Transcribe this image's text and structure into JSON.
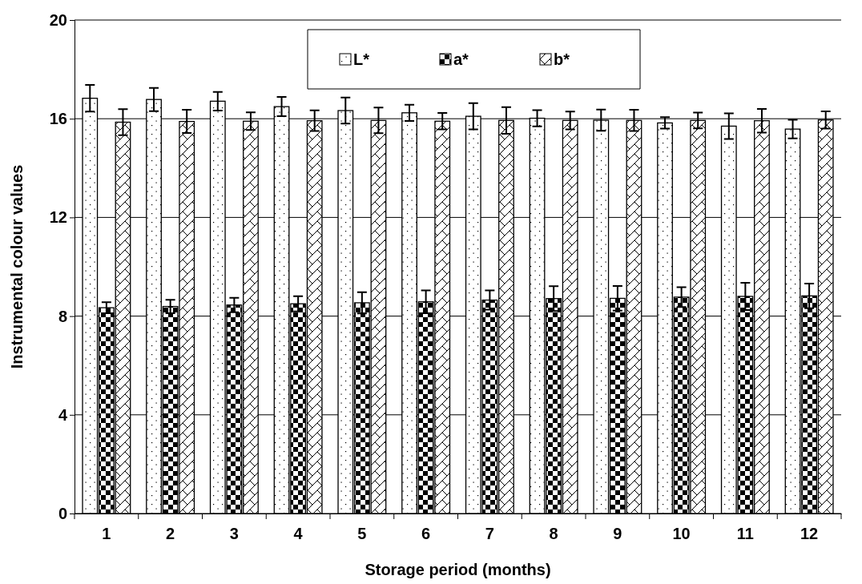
{
  "chart_data": {
    "type": "bar",
    "xlabel": "Storage period (months)",
    "ylabel": "Instrumental colour values",
    "categories": [
      "1",
      "2",
      "3",
      "4",
      "5",
      "6",
      "7",
      "8",
      "9",
      "10",
      "11",
      "12"
    ],
    "series": [
      {
        "name": "L*",
        "color": "#000000",
        "values": [
          16.83,
          16.78,
          16.71,
          16.49,
          16.33,
          16.24,
          16.1,
          16.02,
          15.94,
          15.83,
          15.7,
          15.58
        ],
        "errors": [
          0.54,
          0.47,
          0.38,
          0.39,
          0.53,
          0.33,
          0.53,
          0.33,
          0.43,
          0.23,
          0.52,
          0.38
        ]
      },
      {
        "name": "a*",
        "color": "#000000",
        "values": [
          8.34,
          8.39,
          8.45,
          8.5,
          8.54,
          8.58,
          8.65,
          8.71,
          8.72,
          8.77,
          8.8,
          8.82
        ],
        "errors": [
          0.22,
          0.27,
          0.29,
          0.31,
          0.43,
          0.46,
          0.39,
          0.5,
          0.5,
          0.4,
          0.55,
          0.5
        ]
      },
      {
        "name": "b*",
        "color": "#000000",
        "values": [
          15.86,
          15.89,
          15.9,
          15.92,
          15.93,
          15.9,
          15.93,
          15.93,
          15.93,
          15.93,
          15.92,
          15.95
        ],
        "errors": [
          0.53,
          0.47,
          0.36,
          0.42,
          0.52,
          0.33,
          0.54,
          0.36,
          0.43,
          0.32,
          0.48,
          0.35
        ]
      }
    ],
    "ylim": [
      0,
      20
    ],
    "yticks": [
      0,
      4,
      8,
      12,
      16,
      20
    ],
    "grid": "y",
    "legend": "top"
  }
}
